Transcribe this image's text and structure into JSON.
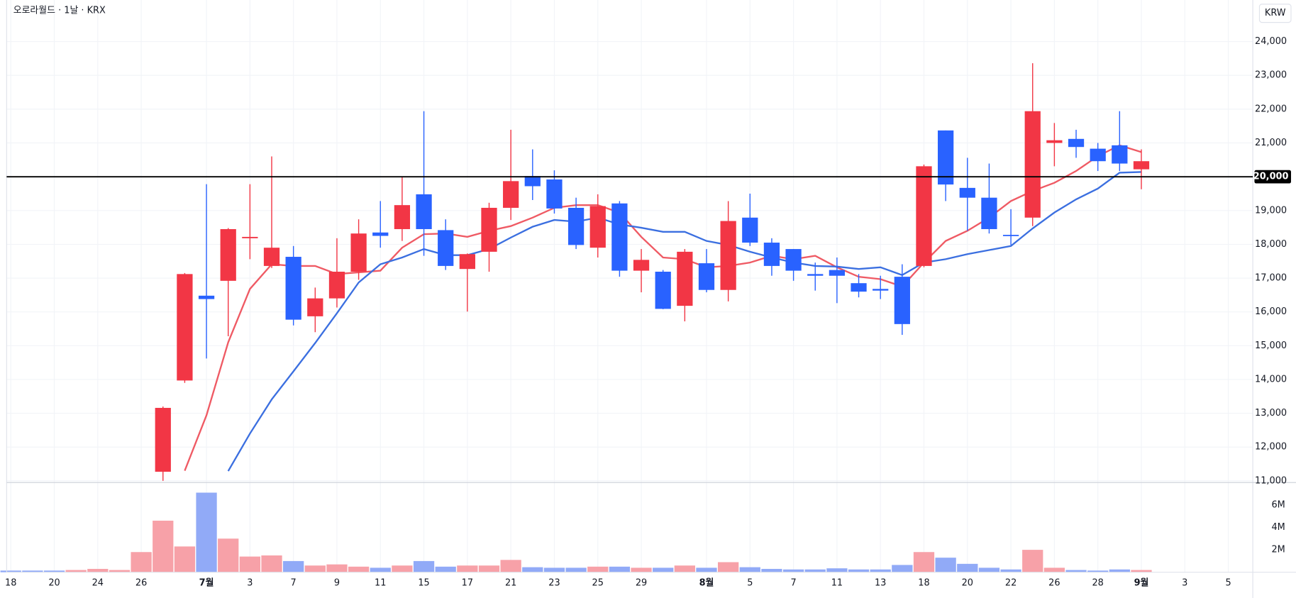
{
  "chart_data": {
    "type": "candlestick",
    "title": "오로라월드 · 1날 · KRX",
    "currency": "KRW",
    "up_color": "#f23645",
    "down_color": "#2962ff",
    "categories": [
      "18",
      null,
      "20",
      null,
      "24",
      null,
      "26",
      null,
      null,
      "7월",
      null,
      "3",
      null,
      "7",
      null,
      "9",
      null,
      "11",
      null,
      "15",
      null,
      "17",
      null,
      "21",
      null,
      "23",
      null,
      "25",
      null,
      "29",
      null,
      null,
      "8월",
      null,
      "5",
      null,
      "7",
      null,
      "11",
      null,
      "13",
      null,
      "18",
      null,
      "20",
      null,
      "22",
      null,
      "26",
      null,
      "28",
      null,
      "9월",
      null,
      "3",
      null,
      "5"
    ],
    "open": [
      null,
      null,
      null,
      null,
      null,
      null,
      null,
      11270,
      13970,
      16480,
      16920,
      18180,
      17360,
      17630,
      15870,
      16400,
      17190,
      18350,
      18450,
      19480,
      18420,
      17270,
      17780,
      19080,
      20020,
      19920,
      19080,
      17900,
      19210,
      17220,
      17190,
      16180,
      17440,
      16650,
      18790,
      18050,
      17860,
      17120,
      17240,
      16850,
      16680,
      17040,
      17360,
      21370,
      19670,
      19380,
      18280,
      18790,
      21000,
      21120,
      20830,
      20930,
      20220,
      null,
      null,
      null,
      null
    ],
    "high": [
      null,
      null,
      null,
      null,
      null,
      null,
      null,
      13200,
      17150,
      19780,
      18480,
      19780,
      20600,
      17950,
      16720,
      18180,
      18740,
      19280,
      20000,
      21940,
      18740,
      17730,
      19230,
      21390,
      20810,
      20190,
      19380,
      19480,
      19280,
      17860,
      17240,
      17860,
      17860,
      19280,
      19500,
      18180,
      17860,
      17460,
      17610,
      17120,
      17070,
      17410,
      20360,
      21370,
      20560,
      20390,
      19040,
      23360,
      21590,
      21390,
      21000,
      21940,
      20810,
      null,
      null,
      null,
      null
    ],
    "low": [
      null,
      null,
      null,
      null,
      null,
      null,
      null,
      11000,
      13900,
      14620,
      15280,
      17560,
      17300,
      15600,
      15400,
      16130,
      16950,
      17900,
      18100,
      17660,
      17240,
      16010,
      17190,
      18720,
      19310,
      18910,
      17860,
      17610,
      17040,
      16580,
      16080,
      15720,
      16580,
      16310,
      17950,
      17070,
      16920,
      16630,
      16260,
      16430,
      16380,
      15320,
      17320,
      19280,
      18400,
      18320,
      17980,
      18540,
      20310,
      20560,
      20170,
      20170,
      19630,
      null,
      null,
      null,
      null
    ],
    "close": [
      null,
      null,
      null,
      null,
      null,
      null,
      null,
      13160,
      17120,
      16380,
      18450,
      18220,
      17900,
      15770,
      16400,
      17190,
      18320,
      18250,
      19160,
      18450,
      17360,
      17710,
      19080,
      19870,
      19720,
      19060,
      17980,
      19130,
      17220,
      17540,
      16090,
      17780,
      16650,
      18690,
      18050,
      17360,
      17220,
      17070,
      17070,
      16600,
      16630,
      15640,
      20310,
      19770,
      19380,
      18450,
      18260,
      21940,
      21080,
      20880,
      20460,
      20390,
      20460,
      null,
      null,
      null,
      null
    ],
    "moving_averages": [
      {
        "color": "#ef5a64",
        "values": [
          null,
          null,
          null,
          null,
          null,
          null,
          null,
          null,
          11300,
          12940,
          15100,
          16680,
          17410,
          17360,
          17360,
          17120,
          17170,
          17220,
          17900,
          18300,
          18320,
          18220,
          18400,
          18540,
          18790,
          19080,
          19160,
          19160,
          18940,
          18220,
          17610,
          17560,
          17320,
          17360,
          17460,
          17660,
          17560,
          17660,
          17320,
          17040,
          16970,
          16750,
          17460,
          18100,
          18400,
          18790,
          19280,
          19580,
          19820,
          20170,
          20610,
          20930,
          20730,
          null,
          null,
          null,
          null
        ]
      },
      {
        "color": "#3b6fe0",
        "values": [
          null,
          null,
          null,
          null,
          null,
          null,
          null,
          null,
          null,
          null,
          11290,
          12400,
          13410,
          14240,
          15080,
          15960,
          16870,
          17410,
          17610,
          17860,
          17680,
          17680,
          17860,
          18200,
          18520,
          18720,
          18670,
          18790,
          18590,
          18490,
          18370,
          18370,
          18100,
          17980,
          17780,
          17610,
          17460,
          17360,
          17340,
          17270,
          17320,
          17090,
          17460,
          17560,
          17710,
          17830,
          17950,
          18470,
          18940,
          19330,
          19650,
          20120,
          20140,
          null,
          null,
          null,
          null
        ]
      }
    ],
    "volume": [
      150000,
      150000,
      150000,
      200000,
      300000,
      200000,
      1800000,
      4600000,
      2300000,
      7100000,
      3000000,
      1400000,
      1500000,
      1000000,
      600000,
      700000,
      500000,
      400000,
      600000,
      1000000,
      500000,
      600000,
      600000,
      1100000,
      450000,
      400000,
      400000,
      500000,
      500000,
      400000,
      400000,
      600000,
      400000,
      900000,
      450000,
      300000,
      250000,
      250000,
      350000,
      250000,
      250000,
      650000,
      1800000,
      1300000,
      750000,
      400000,
      250000,
      2000000,
      400000,
      200000,
      150000,
      250000,
      200000,
      null,
      null,
      null,
      null
    ],
    "volume_colors": [
      "#91aaf7",
      "#91aaf7",
      "#91aaf7",
      "#f7a1a8",
      "#f7a1a8",
      "#f7a1a8",
      "#f7a1a8",
      "#f7a1a8",
      "#f7a1a8",
      "#91aaf7",
      "#f7a1a8",
      "#f7a1a8",
      "#f7a1a8",
      "#91aaf7",
      "#f7a1a8",
      "#f7a1a8",
      "#f7a1a8",
      "#91aaf7",
      "#f7a1a8",
      "#91aaf7",
      "#91aaf7",
      "#f7a1a8",
      "#f7a1a8",
      "#f7a1a8",
      "#91aaf7",
      "#91aaf7",
      "#91aaf7",
      "#f7a1a8",
      "#91aaf7",
      "#f7a1a8",
      "#91aaf7",
      "#f7a1a8",
      "#91aaf7",
      "#f7a1a8",
      "#91aaf7",
      "#91aaf7",
      "#91aaf7",
      "#91aaf7",
      "#91aaf7",
      "#91aaf7",
      "#91aaf7",
      "#91aaf7",
      "#f7a1a8",
      "#91aaf7",
      "#91aaf7",
      "#91aaf7",
      "#91aaf7",
      "#f7a1a8",
      "#f7a1a8",
      "#91aaf7",
      "#91aaf7",
      "#91aaf7",
      "#f7a1a8",
      null,
      null,
      null,
      null
    ],
    "ylim": [
      10950,
      25230
    ],
    "yticks": [
      {
        "value": 11000,
        "label": "11,000"
      },
      {
        "value": 12000,
        "label": "12,000"
      },
      {
        "value": 13000,
        "label": "13,000"
      },
      {
        "value": 14000,
        "label": "14,000"
      },
      {
        "value": 15000,
        "label": "15,000"
      },
      {
        "value": 16000,
        "label": "16,000"
      },
      {
        "value": 17000,
        "label": "17,000"
      },
      {
        "value": 18000,
        "label": "18,000"
      },
      {
        "value": 19000,
        "label": "19,000"
      },
      {
        "value": 20000,
        "label": "20,000"
      },
      {
        "value": 21000,
        "label": "21,000"
      },
      {
        "value": 22000,
        "label": "22,000"
      },
      {
        "value": 23000,
        "label": "23,000"
      },
      {
        "value": 24000,
        "label": "24,000"
      }
    ],
    "volume_lim": [
      0,
      8000000
    ],
    "volume_ticks": [
      {
        "value": 2000000,
        "label": "2M"
      },
      {
        "value": 4000000,
        "label": "4M"
      },
      {
        "value": 6000000,
        "label": "6M"
      }
    ],
    "hline": {
      "value": 20000,
      "label": "20,000",
      "color": "#000000"
    },
    "grid": true
  }
}
